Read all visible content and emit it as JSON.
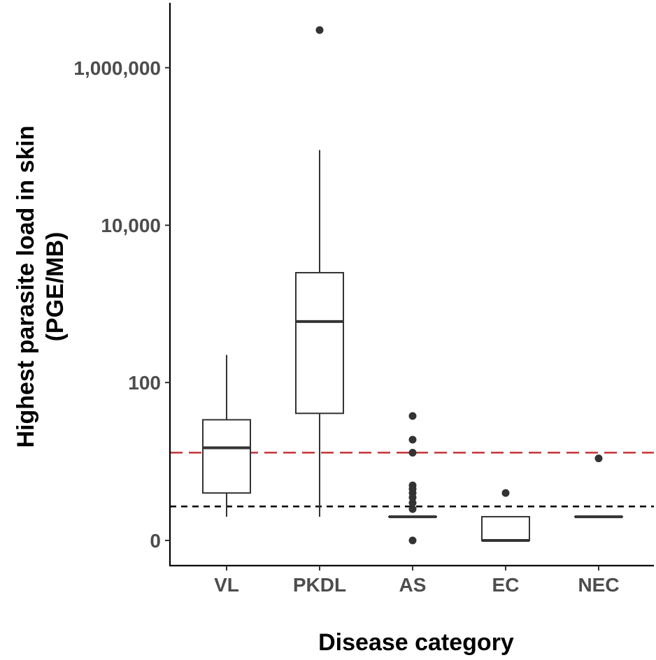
{
  "chart_data": {
    "type": "box",
    "title": "",
    "xlabel": "Disease category",
    "ylabel_line1": "Highest parasite load in skin",
    "ylabel_line2": "(PGE/MB)",
    "y_scale": "pseudo-log",
    "y_ticks": [
      0,
      100,
      10000,
      1000000
    ],
    "y_tick_labels": [
      "0",
      "100",
      "10,000",
      "1,000,000"
    ],
    "ylim": [
      0,
      5000000
    ],
    "categories": [
      "VL",
      "PKDL",
      "AS",
      "EC",
      "NEC"
    ],
    "boxes": [
      {
        "category": "VL",
        "whisker_low": 1,
        "q1": 3,
        "median": 14,
        "q3": 33,
        "whisker_high": 225,
        "outliers": []
      },
      {
        "category": "PKDL",
        "whisker_low": 1,
        "q1": 40,
        "median": 600,
        "q3": 2500,
        "whisker_high": 90000,
        "outliers": [
          3000000
        ]
      },
      {
        "category": "AS",
        "whisker_low": 1,
        "q1": 1,
        "median": 1,
        "q3": 1,
        "whisker_high": 1,
        "outliers": [
          0,
          1.5,
          2,
          2.5,
          3,
          3.5,
          4,
          12,
          18,
          37
        ]
      },
      {
        "category": "EC",
        "whisker_low": 0,
        "q1": 0,
        "median": 0,
        "q3": 1,
        "whisker_high": 1,
        "outliers": [
          3
        ]
      },
      {
        "category": "NEC",
        "whisker_low": 1,
        "q1": 1,
        "median": 1,
        "q3": 1,
        "whisker_high": 1,
        "outliers": [
          10
        ]
      }
    ],
    "reference_lines": [
      {
        "y": 12,
        "color": "#c0282d",
        "style": "dashed"
      },
      {
        "y": 1.7,
        "color": "#000000",
        "style": "dashed"
      }
    ],
    "legend": "none",
    "grid": false
  }
}
